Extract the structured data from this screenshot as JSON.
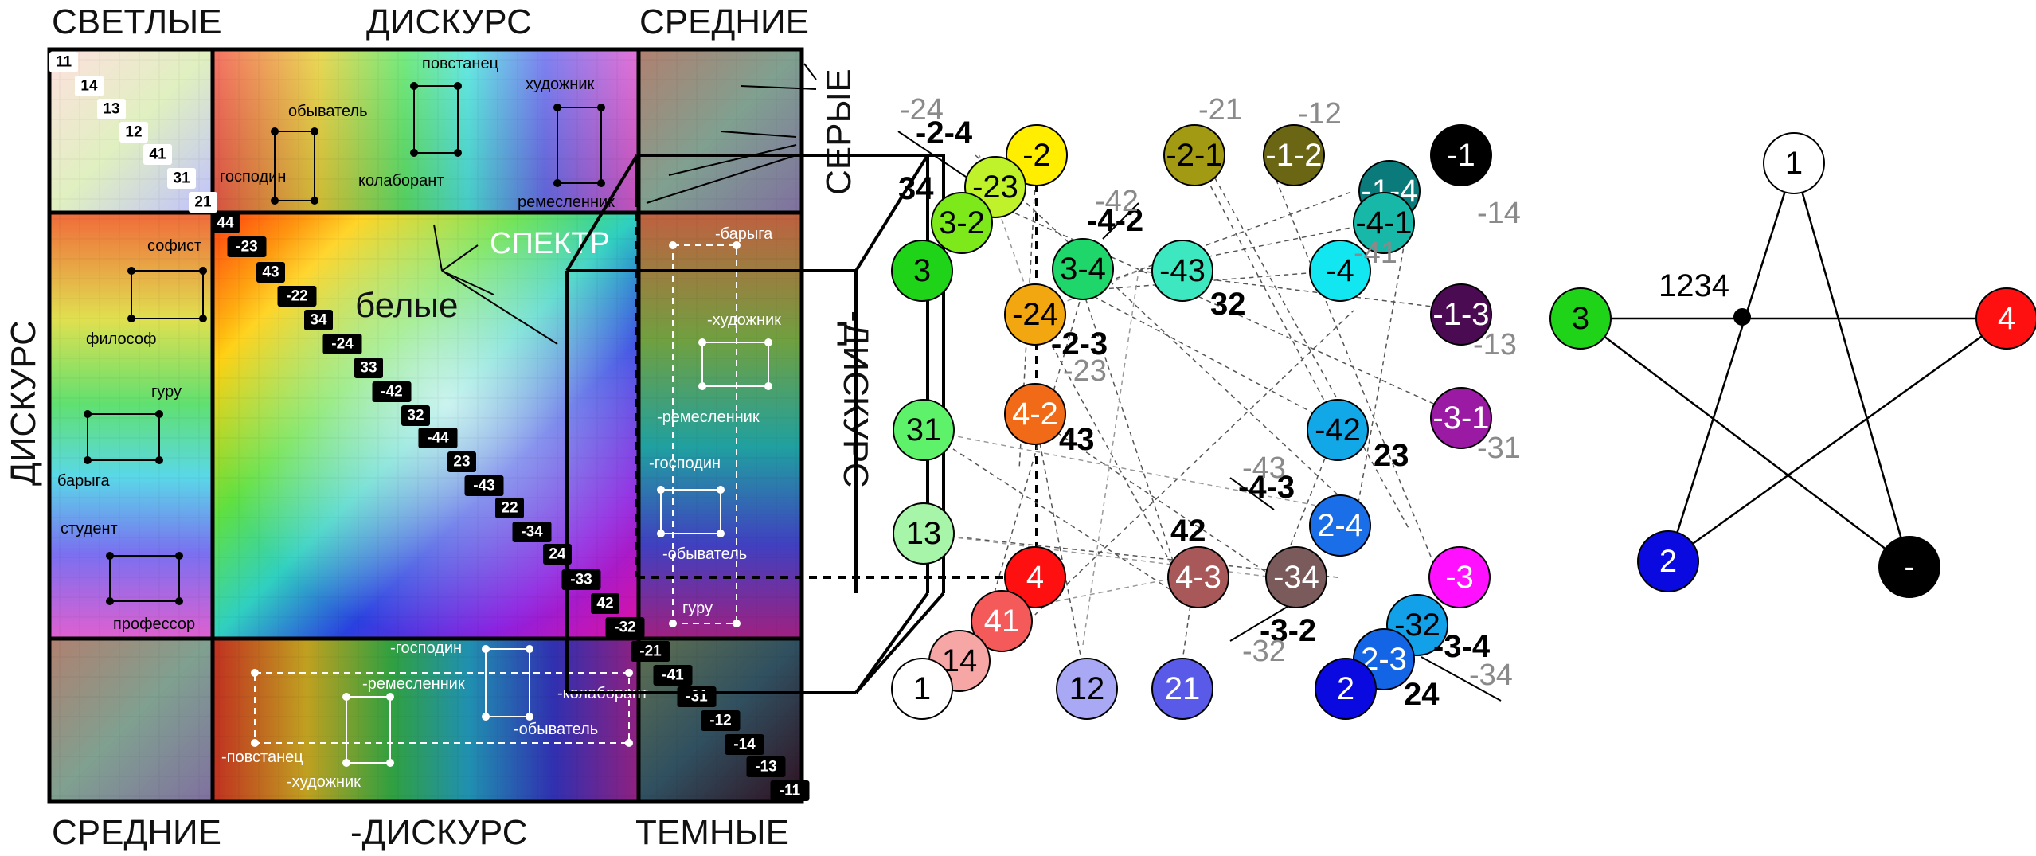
{
  "matrix": {
    "heading_top_left": "СВЕТЛЫЕ",
    "heading_top_center": "ДИСКУРС",
    "heading_top_right": "СРЕДНИЕ",
    "heading_bottom_left": "СРЕДНИЕ",
    "heading_bottom_center": "-ДИСКУРС",
    "heading_bottom_right": "ТЕМНЫЕ",
    "heading_left": "ДИСКУРС",
    "heading_right": "-ДИСКУРС",
    "heading_grey": "СЕРЫЕ",
    "spectrum_label": "СПЕКТР",
    "white_label": "белые",
    "light_chips": [
      "11",
      "14",
      "13",
      "12",
      "41",
      "31",
      "21"
    ],
    "diagonal_chips": [
      "44",
      "-23",
      "43",
      "-22",
      "34",
      "-24",
      "33",
      "-42",
      "32",
      "-44",
      "23",
      "-43",
      "22",
      "-34",
      "24",
      "-33",
      "42",
      "-32"
    ],
    "dark_chips": [
      "-21",
      "-41",
      "-31",
      "-12",
      "-14",
      "-13",
      "-11"
    ],
    "top_roles": [
      "повстанец",
      "обыватель",
      "художник",
      "господин",
      "колаборант",
      "ремесленник"
    ],
    "left_roles": [
      "софист",
      "философ",
      "гуру",
      "барыга",
      "студент",
      "профессор"
    ],
    "right_roles": [
      "-барыга",
      "-художник",
      "-ремесленник",
      "-господин",
      "-обыватель",
      "гуру"
    ],
    "bottom_roles": [
      "-господин",
      "-ремесленник",
      "-колаборант",
      "-обыватель",
      "-повстанец",
      "-художник"
    ]
  },
  "cube": {
    "nodes": [
      {
        "label": "-2",
        "color": "#ffee00",
        "text": "#000"
      },
      {
        "label": "-2-1",
        "color": "#a39a14",
        "text": "#000"
      },
      {
        "label": "-1-2",
        "color": "#6b6614",
        "text": "#fff"
      },
      {
        "label": "-1",
        "color": "#000000",
        "text": "#fff"
      },
      {
        "label": "-23",
        "color": "#bff22a",
        "text": "#000"
      },
      {
        "label": "-1-4",
        "color": "#0a7a7a",
        "text": "#fff"
      },
      {
        "label": "3-2",
        "color": "#7de81a",
        "text": "#000"
      },
      {
        "label": "-4-1",
        "color": "#17b8a8",
        "text": "#000"
      },
      {
        "label": "3",
        "color": "#1ed318",
        "text": "#000"
      },
      {
        "label": "3-4",
        "color": "#1ed66a",
        "text": "#000"
      },
      {
        "label": "-43",
        "color": "#3de8c0",
        "text": "#000"
      },
      {
        "label": "-4",
        "color": "#12e6f0",
        "text": "#000"
      },
      {
        "label": "-24",
        "color": "#f2a60f",
        "text": "#000"
      },
      {
        "label": "-1-3",
        "color": "#4b0b52",
        "text": "#fff"
      },
      {
        "label": "31",
        "color": "#5ef26b",
        "text": "#000"
      },
      {
        "label": "4-2",
        "color": "#f06a17",
        "text": "#fff"
      },
      {
        "label": "-42",
        "color": "#12a8e8",
        "text": "#000"
      },
      {
        "label": "-3-1",
        "color": "#9b1aa3",
        "text": "#fff"
      },
      {
        "label": "13",
        "color": "#a7f5a8",
        "text": "#000"
      },
      {
        "label": "2-4",
        "color": "#1a6fe8",
        "text": "#fff"
      },
      {
        "label": "4",
        "color": "#ff1010",
        "text": "#fff"
      },
      {
        "label": "4-3",
        "color": "#a85858",
        "text": "#fff"
      },
      {
        "label": "-34",
        "color": "#7a5a5a",
        "text": "#fff"
      },
      {
        "label": "-3",
        "color": "#ff10ff",
        "text": "#fff"
      },
      {
        "label": "41",
        "color": "#f55a5a",
        "text": "#fff"
      },
      {
        "label": "-32",
        "color": "#12a0e8",
        "text": "#000"
      },
      {
        "label": "14",
        "color": "#f7a6a6",
        "text": "#000"
      },
      {
        "label": "2-3",
        "color": "#1464e6",
        "text": "#fff"
      },
      {
        "label": "1",
        "color": "#ffffff",
        "text": "#000"
      },
      {
        "label": "12",
        "color": "#a8a8f5",
        "text": "#000"
      },
      {
        "label": "21",
        "color": "#5a5ae8",
        "text": "#fff"
      },
      {
        "label": "2",
        "color": "#0a0ae0",
        "text": "#fff"
      }
    ],
    "bold_labels": [
      "-2-4",
      "34",
      "-4-2",
      "32",
      "-2-3",
      "43",
      "23",
      "-4-3",
      "42",
      "-3-2",
      "-3-4",
      "24"
    ],
    "grey_labels": [
      "-24",
      "-21",
      "-12",
      "-42",
      "-14",
      "-41",
      "-23",
      "-13",
      "-31",
      "-43",
      "-32",
      "-34"
    ]
  },
  "star": {
    "center_label": "1234",
    "nodes": [
      {
        "label": "1",
        "color": "#ffffff",
        "text": "#000"
      },
      {
        "label": "3",
        "color": "#1ed318",
        "text": "#000"
      },
      {
        "label": "4",
        "color": "#ff1010",
        "text": "#fff"
      },
      {
        "label": "2",
        "color": "#0a0ae0",
        "text": "#fff"
      },
      {
        "label": "-",
        "color": "#000000",
        "text": "#fff"
      }
    ]
  }
}
